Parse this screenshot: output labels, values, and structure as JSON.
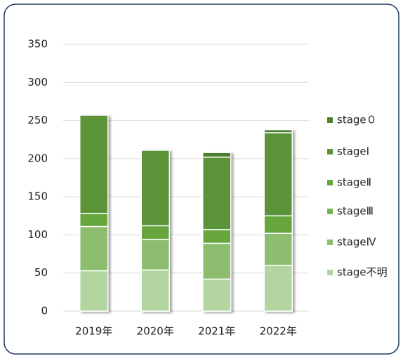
{
  "chart_data": {
    "type": "stacked_bar",
    "categories": [
      "2019年",
      "2020年",
      "2021年",
      "2022年"
    ],
    "series": [
      {
        "name": "stage不明",
        "color": "#b3d5a0",
        "values": [
          53,
          54,
          42,
          60
        ]
      },
      {
        "name": "stageⅣ",
        "color": "#8dbe70",
        "values": [
          58,
          40,
          47,
          42
        ]
      },
      {
        "name": "stageⅢ",
        "color": "#76b152",
        "values": [
          0,
          0,
          0,
          0
        ]
      },
      {
        "name": "stageⅡ",
        "color": "#66a63e",
        "values": [
          17,
          18,
          18,
          23
        ]
      },
      {
        "name": "stageⅠ",
        "color": "#5a9337",
        "values": [
          129,
          99,
          95,
          109
        ]
      },
      {
        "name": "stage０",
        "color": "#4e7f2f",
        "values": [
          0,
          0,
          6,
          4
        ]
      }
    ],
    "ylim": [
      0,
      350
    ],
    "yticks": [
      0,
      50,
      100,
      150,
      200,
      250,
      300,
      350
    ],
    "grid": true,
    "legend": "right"
  }
}
